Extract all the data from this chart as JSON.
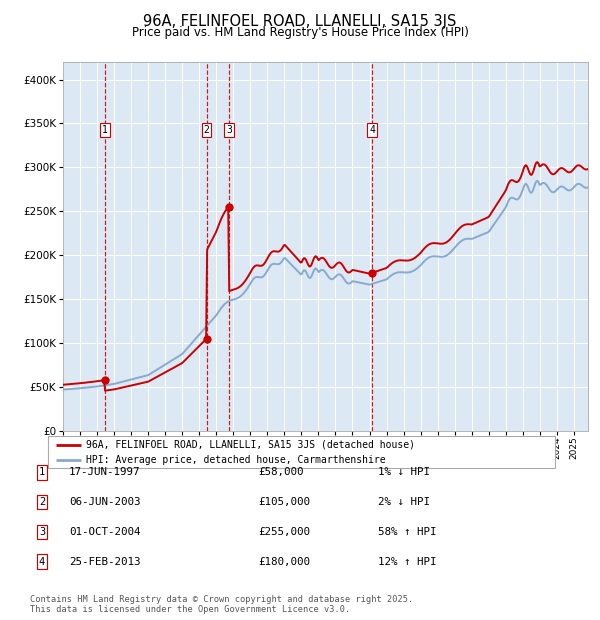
{
  "title_line1": "96A, FELINFOEL ROAD, LLANELLI, SA15 3JS",
  "title_line2": "Price paid vs. HM Land Registry's House Price Index (HPI)",
  "hpi_label": "HPI: Average price, detached house, Carmarthenshire",
  "property_label": "96A, FELINFOEL ROAD, LLANELLI, SA15 3JS (detached house)",
  "sale_events": [
    {
      "num": 1,
      "date": "17-JUN-1997",
      "price": 58000,
      "pct": "1%",
      "dir": "↓"
    },
    {
      "num": 2,
      "date": "06-JUN-2003",
      "price": 105000,
      "pct": "2%",
      "dir": "↓"
    },
    {
      "num": 3,
      "date": "01-OCT-2004",
      "price": 255000,
      "pct": "58%",
      "dir": "↑"
    },
    {
      "num": 4,
      "date": "25-FEB-2013",
      "price": 180000,
      "pct": "12%",
      "dir": "↑"
    }
  ],
  "sale_dates_decimal": [
    1997.46,
    2003.43,
    2004.75,
    2013.15
  ],
  "sale_prices": [
    58000,
    105000,
    255000,
    180000
  ],
  "ylim": [
    0,
    420000
  ],
  "xlim_start": 1995.0,
  "xlim_end": 2025.83,
  "line_color_property": "#cc0000",
  "line_color_hpi": "#88aacc",
  "dot_color_property": "#cc0000",
  "background_color": "#dce9f5",
  "grid_color": "#ffffff",
  "vline_color": "#cc0000",
  "footer": "Contains HM Land Registry data © Crown copyright and database right 2025.\nThis data is licensed under the Open Government Licence v3.0."
}
